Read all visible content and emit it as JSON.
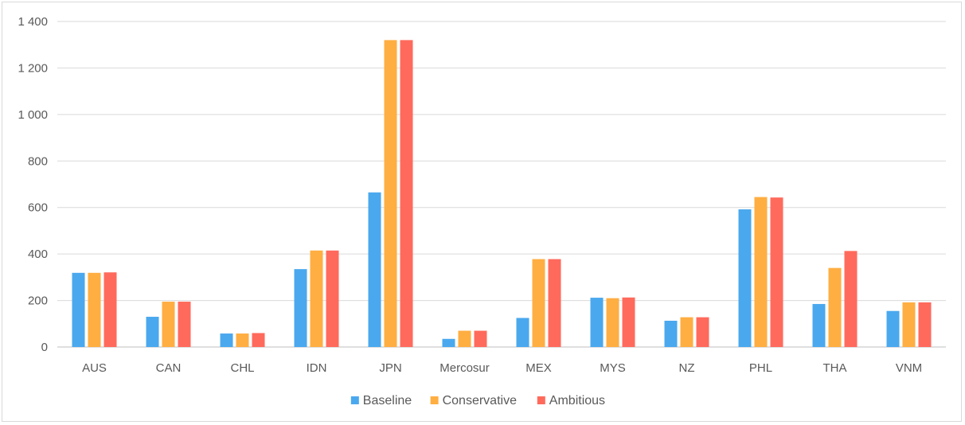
{
  "chart_data": {
    "type": "bar",
    "title": "",
    "xlabel": "",
    "ylabel": "",
    "ylim": [
      0,
      1400
    ],
    "yticks": [
      0,
      200,
      400,
      600,
      800,
      1000,
      1200,
      1400
    ],
    "ytick_labels": [
      "0",
      "200",
      "400",
      "600",
      "800",
      "1 000",
      "1 200",
      "1 400"
    ],
    "grid": true,
    "legend_position": "bottom",
    "categories": [
      "AUS",
      "CAN",
      "CHL",
      "IDN",
      "JPN",
      "Mercosur",
      "MEX",
      "MYS",
      "NZ",
      "PHL",
      "THA",
      "VNM"
    ],
    "series": [
      {
        "name": "Baseline",
        "color": "#4aa8ee",
        "values": [
          319,
          130,
          58,
          335,
          665,
          35,
          125,
          212,
          113,
          592,
          185,
          155
        ]
      },
      {
        "name": "Conservative",
        "color": "#ffae42",
        "values": [
          319,
          195,
          58,
          415,
          1320,
          70,
          378,
          210,
          128,
          645,
          340,
          192
        ]
      },
      {
        "name": "Ambitious",
        "color": "#ff6a5c",
        "values": [
          321,
          195,
          60,
          415,
          1320,
          70,
          378,
          213,
          128,
          643,
          413,
          192
        ]
      }
    ]
  }
}
